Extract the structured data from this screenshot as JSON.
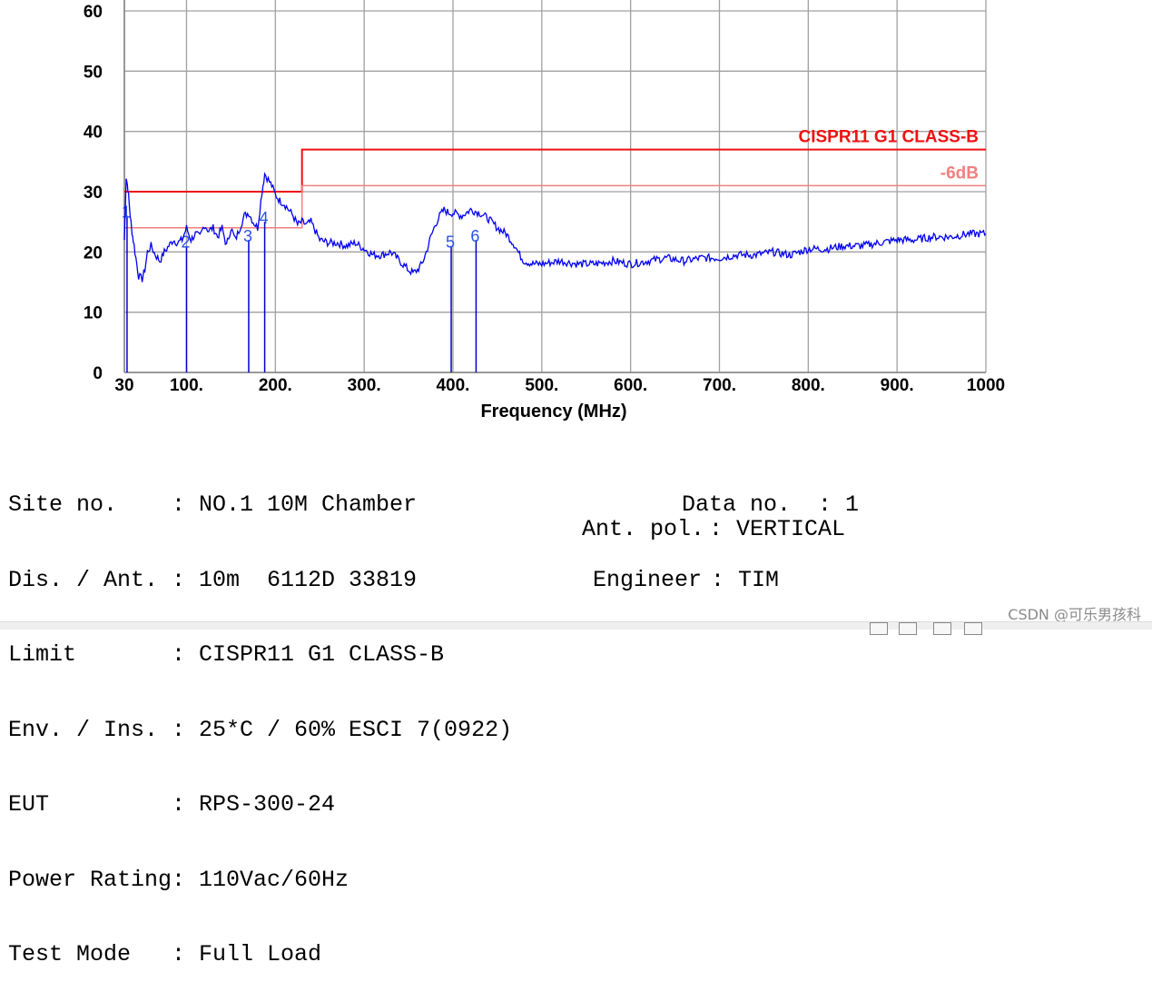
{
  "chart_data": {
    "type": "line",
    "xlabel": "Frequency (MHz)",
    "ylabel": "",
    "x_ticks": [
      30,
      100,
      200,
      300,
      400,
      500,
      600,
      700,
      800,
      900,
      1000
    ],
    "x_tick_labels": [
      "30",
      "100.",
      "200.",
      "300.",
      "400.",
      "500.",
      "600.",
      "700.",
      "800.",
      "900.",
      "1000"
    ],
    "y_ticks": [
      0,
      10,
      20,
      30,
      40,
      50,
      60
    ],
    "y_tick_labels": [
      "0",
      "10",
      "20",
      "30",
      "40",
      "50",
      "60"
    ],
    "xlim": [
      30,
      1000
    ],
    "ylim": [
      0,
      60
    ],
    "grid": true,
    "series": [
      {
        "color": "#0000ee",
        "x": [
          30,
          32,
          34,
          36,
          38,
          40,
          43,
          46,
          50,
          53,
          56,
          60,
          65,
          70,
          75,
          80,
          85,
          90,
          95,
          100,
          105,
          110,
          115,
          120,
          125,
          130,
          135,
          140,
          145,
          150,
          155,
          160,
          165,
          170,
          175,
          180,
          185,
          188,
          192,
          196,
          200,
          205,
          210,
          215,
          220,
          225,
          230,
          235,
          240,
          245,
          250,
          260,
          270,
          280,
          290,
          300,
          310,
          320,
          330,
          340,
          350,
          355,
          360,
          365,
          370,
          375,
          380,
          385,
          390,
          395,
          400,
          410,
          420,
          430,
          440,
          450,
          460,
          470,
          475,
          480,
          490,
          500,
          520,
          540,
          560,
          580,
          600,
          620,
          640,
          660,
          680,
          700,
          720,
          740,
          760,
          780,
          800,
          820,
          840,
          860,
          880,
          900,
          920,
          940,
          960,
          980,
          1000
        ],
        "values": [
          22,
          32.5,
          30.5,
          27,
          24,
          22,
          19,
          16,
          15.5,
          17,
          20,
          21,
          19.5,
          18.5,
          20,
          21,
          22,
          21.5,
          22,
          24,
          22,
          23,
          22.5,
          24.5,
          23.5,
          24,
          22.5,
          24,
          21,
          24,
          22,
          24,
          26,
          26.5,
          25,
          24,
          30,
          33,
          32,
          31,
          29.5,
          28.5,
          28,
          27,
          26,
          24.5,
          25,
          24.5,
          25,
          23.5,
          22,
          21.5,
          21.5,
          21,
          21.5,
          20.5,
          19.5,
          19.5,
          20,
          18.5,
          17,
          16.5,
          17,
          18,
          20,
          22.5,
          24.5,
          26,
          27,
          26.5,
          26.5,
          26,
          27,
          26.5,
          25.5,
          24,
          23,
          21,
          19.5,
          18.5,
          18,
          18,
          18.5,
          18,
          18,
          18.5,
          18,
          18.5,
          19,
          18.5,
          19,
          19,
          19.5,
          19.5,
          20,
          19.5,
          20.5,
          20.5,
          21,
          21,
          21.5,
          22,
          22,
          22.5,
          22.5,
          23,
          23
        ]
      }
    ],
    "limits": [
      {
        "name": "CISPR11 G1 CLASS-B",
        "color": "#ee1111",
        "segments": [
          [
            30,
            230,
            30
          ],
          [
            230,
            1000,
            37
          ]
        ]
      },
      {
        "name": "-6dB",
        "color": "#f08080",
        "segments": [
          [
            30,
            230,
            24
          ],
          [
            230,
            1000,
            31
          ]
        ]
      }
    ],
    "markers": [
      {
        "label": "1",
        "x": 33,
        "y": 26
      },
      {
        "label": "2",
        "x": 100,
        "y": 21
      },
      {
        "label": "3",
        "x": 170,
        "y": 22
      },
      {
        "label": "4",
        "x": 188,
        "y": 25
      },
      {
        "label": "5",
        "x": 398,
        "y": 21
      },
      {
        "label": "6",
        "x": 426,
        "y": 22
      }
    ],
    "info_left": [
      {
        "key": "Site no.",
        "value": "NO.1 10M Chamber"
      },
      {
        "key": "Dis. / Ant.",
        "value": "10m  6112D 33819"
      },
      {
        "key": "Limit",
        "value": "CISPR11 G1 CLASS-B"
      },
      {
        "key": "Env. / Ins.",
        "value": "25*C / 60% ESCI 7(0922)"
      },
      {
        "key": "EUT",
        "value": "RPS-300-24"
      },
      {
        "key": "Power Rating",
        "value": "110Vac/60Hz"
      },
      {
        "key": "Test Mode",
        "value": "Full Load"
      }
    ],
    "info_right": [
      {
        "key": "Data no.",
        "value": "1"
      },
      {
        "key": "Ant. pol.",
        "value": "VERTICAL"
      },
      {
        "key": "Engineer",
        "value": "TIM"
      }
    ]
  },
  "watermark": "CSDN @可乐男孩科"
}
